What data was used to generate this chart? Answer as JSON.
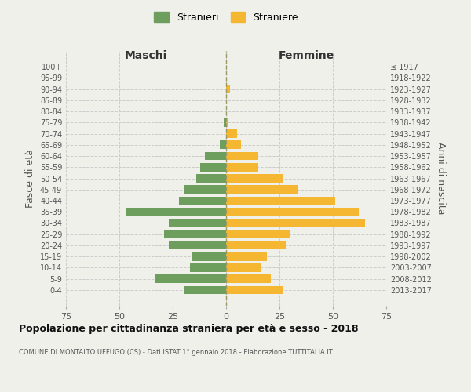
{
  "age_groups": [
    "0-4",
    "5-9",
    "10-14",
    "15-19",
    "20-24",
    "25-29",
    "30-34",
    "35-39",
    "40-44",
    "45-49",
    "50-54",
    "55-59",
    "60-64",
    "65-69",
    "70-74",
    "75-79",
    "80-84",
    "85-89",
    "90-94",
    "95-99",
    "100+"
  ],
  "birth_years": [
    "2013-2017",
    "2008-2012",
    "2003-2007",
    "1998-2002",
    "1993-1997",
    "1988-1992",
    "1983-1987",
    "1978-1982",
    "1973-1977",
    "1968-1972",
    "1963-1967",
    "1958-1962",
    "1953-1957",
    "1948-1952",
    "1943-1947",
    "1938-1942",
    "1933-1937",
    "1928-1932",
    "1923-1927",
    "1918-1922",
    "≤ 1917"
  ],
  "maschi": [
    20,
    33,
    17,
    16,
    27,
    29,
    27,
    47,
    22,
    20,
    14,
    12,
    10,
    3,
    0,
    1,
    0,
    0,
    0,
    0,
    0
  ],
  "femmine": [
    27,
    21,
    16,
    19,
    28,
    30,
    65,
    62,
    51,
    34,
    27,
    15,
    15,
    7,
    5,
    1,
    0,
    0,
    2,
    0,
    0
  ],
  "maschi_color": "#6e9e5e",
  "femmine_color": "#f5b731",
  "bg_color": "#f0f0eb",
  "grid_color": "#cccccc",
  "xlim": 75,
  "title": "Popolazione per cittadinanza straniera per età e sesso - 2018",
  "subtitle": "COMUNE DI MONTALTO UFFUGO (CS) - Dati ISTAT 1° gennaio 2018 - Elaborazione TUTTITALIA.IT",
  "ylabel_left": "Fasce di età",
  "ylabel_right": "Anni di nascita",
  "xlabel_maschi": "Maschi",
  "xlabel_femmine": "Femmine",
  "legend_maschi": "Stranieri",
  "legend_femmine": "Straniere"
}
